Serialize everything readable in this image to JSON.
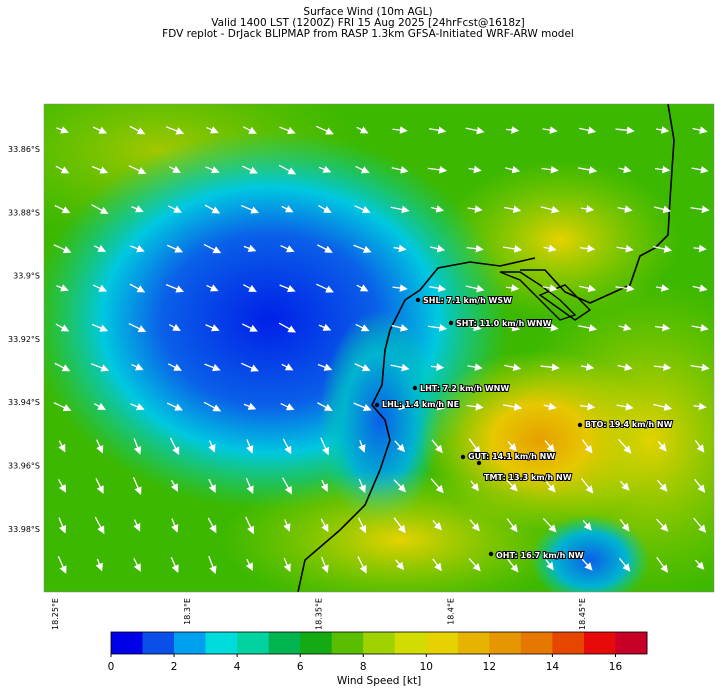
{
  "header": {
    "title": "Surface Wind (10m AGL)",
    "subtitle": "Valid 1400 LST (1200Z) FRI 15 Aug 2025 [24hrFcst@1618z]",
    "source": "FDV replot - DrJack BLIPMAP from RASP 1.3km GFSA-Initiated WRF-ARW model"
  },
  "map": {
    "lat_labels": [
      "33.86°S",
      "33.88°S",
      "33.9°S",
      "33.92°S",
      "33.94°S",
      "33.96°S",
      "33.98°S"
    ],
    "lon_labels": [
      "18.25°E",
      "18.3°E",
      "18.35°E",
      "18.4°E",
      "18.45°E"
    ],
    "stations": [
      "SHL: 7.1 km/h WSW",
      "SHT: 11.0 km/h WNW",
      "LHT: 7.2 km/h WNW",
      "LHL: 1.4 km/h NE",
      "BTO: 19.4 km/h NW",
      "GUT: 14.1 km/h NW",
      "TMT: 13.3 km/h NW",
      "OHT: 16.7 km/h NW"
    ]
  },
  "colorbar": {
    "label": "Wind Speed [kt]",
    "lim": [
      0,
      17
    ],
    "ticks": [
      0,
      2,
      4,
      6,
      8,
      10,
      12,
      14,
      16
    ],
    "colors": [
      "#0000e8",
      "#0a50e8",
      "#00a0f0",
      "#00dcdc",
      "#00d2a0",
      "#00b450",
      "#14aa14",
      "#5abe00",
      "#a0d200",
      "#d2dc00",
      "#e6d200",
      "#e6b400",
      "#e69600",
      "#e67800",
      "#e64600",
      "#e60a0a",
      "#c80028"
    ]
  }
}
